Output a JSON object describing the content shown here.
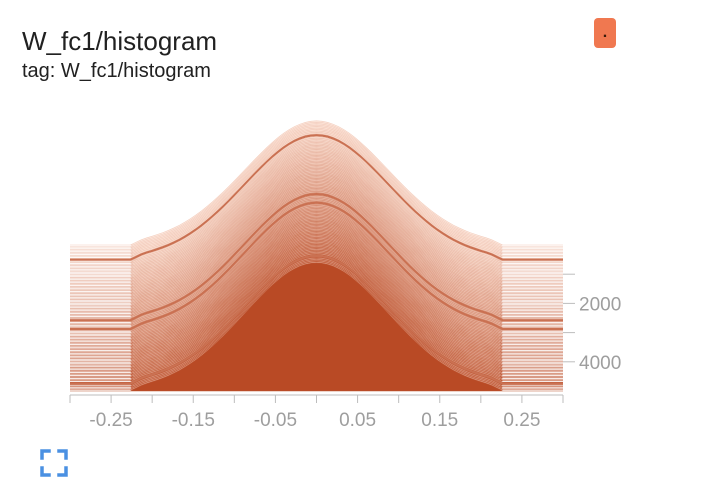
{
  "card": {
    "title": "W_fc1/histogram",
    "tag_line": "tag: W_fc1/histogram",
    "badge_text": "."
  },
  "chart_data": {
    "type": "area",
    "mode": "offset",
    "title": "W_fc1/histogram",
    "subtitle": "tag: W_fc1/histogram",
    "x_ticks": [
      "-0.25",
      "-0.15",
      "-0.05",
      "0.05",
      "0.15",
      "0.25"
    ],
    "x_tick_values": [
      -0.25,
      -0.15,
      -0.05,
      0.05,
      0.15,
      0.25
    ],
    "xlim": [
      -0.3,
      0.3
    ],
    "y_ticks": [
      "2000",
      "4000"
    ],
    "y_tick_values": [
      2000,
      4000
    ],
    "steps_range": [
      0,
      5000
    ],
    "num_histograms": 100,
    "distribution": {
      "shape": "approximately uniform weight distribution with smoothed edges",
      "support": [
        -0.22,
        0.22
      ],
      "peak_at": 0.0
    },
    "highlighted_steps": [
      500,
      2600,
      2900,
      4750
    ],
    "colors": {
      "light": "#fde5d9",
      "dark": "#b94a25",
      "badge": "#f07850",
      "icon": "#4a90e2",
      "axis": "#bdbdbd"
    }
  },
  "icons": {
    "fullscreen": "fullscreen-icon"
  }
}
